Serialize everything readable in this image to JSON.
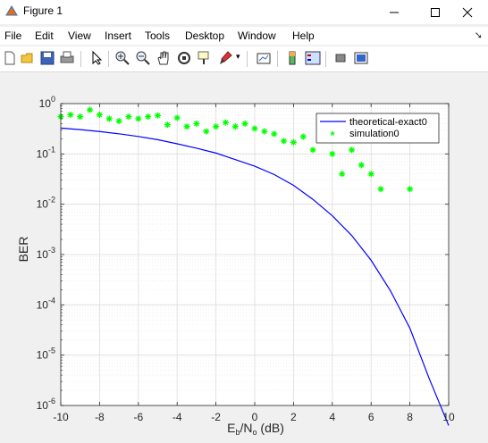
{
  "window": {
    "title": "Figure 1",
    "minimize_icon": "minimize-icon",
    "maximize_icon": "maximize-icon",
    "close_icon": "close-icon"
  },
  "menu": {
    "items": [
      "File",
      "Edit",
      "View",
      "Insert",
      "Tools",
      "Desktop",
      "Window",
      "Help"
    ]
  },
  "toolbar": {
    "icons": [
      "new-figure-icon",
      "open-file-icon",
      "save-icon",
      "print-icon",
      "select-arrow-icon",
      "zoom-in-icon",
      "zoom-out-icon",
      "pan-hand-icon",
      "rotate-3d-icon",
      "data-cursor-icon",
      "brush-icon",
      "link-plot-icon",
      "colorbar-icon",
      "legend-icon",
      "hide-plot-tools-icon",
      "show-plot-tools-icon"
    ]
  },
  "chart_data": {
    "type": "line",
    "title": "",
    "xlabel": "E_b/N_o (dB)",
    "ylabel": "BER",
    "xlim": [
      -10,
      10
    ],
    "ylim": [
      1e-06,
      1
    ],
    "yscale": "log",
    "grid": true,
    "x_ticks": [
      "-10",
      "-8",
      "-6",
      "-4",
      "-2",
      "0",
      "2",
      "4",
      "6",
      "8",
      "10"
    ],
    "y_tick_exponents": [
      "0",
      "-1",
      "-2",
      "-3",
      "-4",
      "-5",
      "-6"
    ],
    "legend_position": "top-right",
    "series": [
      {
        "name": "theoretical-exact0",
        "style": "line",
        "color": "#0000ff",
        "x": [
          -10,
          -9,
          -8,
          -7,
          -6,
          -5,
          -4,
          -3,
          -2,
          -1,
          0,
          1,
          2,
          3,
          4,
          5,
          6,
          7,
          8,
          9,
          10
        ],
        "y": [
          0.327,
          0.304,
          0.279,
          0.251,
          0.222,
          0.192,
          0.159,
          0.13,
          0.104,
          0.077,
          0.057,
          0.039,
          0.0238,
          0.0125,
          0.0059,
          0.00239,
          0.00077,
          0.00019,
          3.43e-05,
          3.4e-06,
          4e-07
        ]
      },
      {
        "name": "simulation0",
        "style": "marker",
        "color": "#00ff00",
        "x": [
          -10,
          -9.5,
          -9,
          -8.5,
          -8,
          -7.5,
          -7,
          -6.5,
          -6,
          -5.5,
          -5,
          -4.5,
          -4,
          -3.5,
          -3,
          -2.5,
          -2,
          -1.5,
          -1,
          -0.5,
          0,
          0.5,
          1,
          1.5,
          2,
          2.5,
          3,
          3.5,
          4,
          4.5,
          5,
          5.5,
          6,
          6.5,
          8
        ],
        "y": [
          0.55,
          0.6,
          0.55,
          0.75,
          0.6,
          0.5,
          0.45,
          0.55,
          0.5,
          0.55,
          0.58,
          0.38,
          0.52,
          0.35,
          0.4,
          0.28,
          0.35,
          0.42,
          0.35,
          0.4,
          0.32,
          0.28,
          0.25,
          0.18,
          0.17,
          0.22,
          0.12,
          0.2,
          0.1,
          0.04,
          0.12,
          0.06,
          0.04,
          0.02,
          0.02
        ]
      }
    ]
  }
}
